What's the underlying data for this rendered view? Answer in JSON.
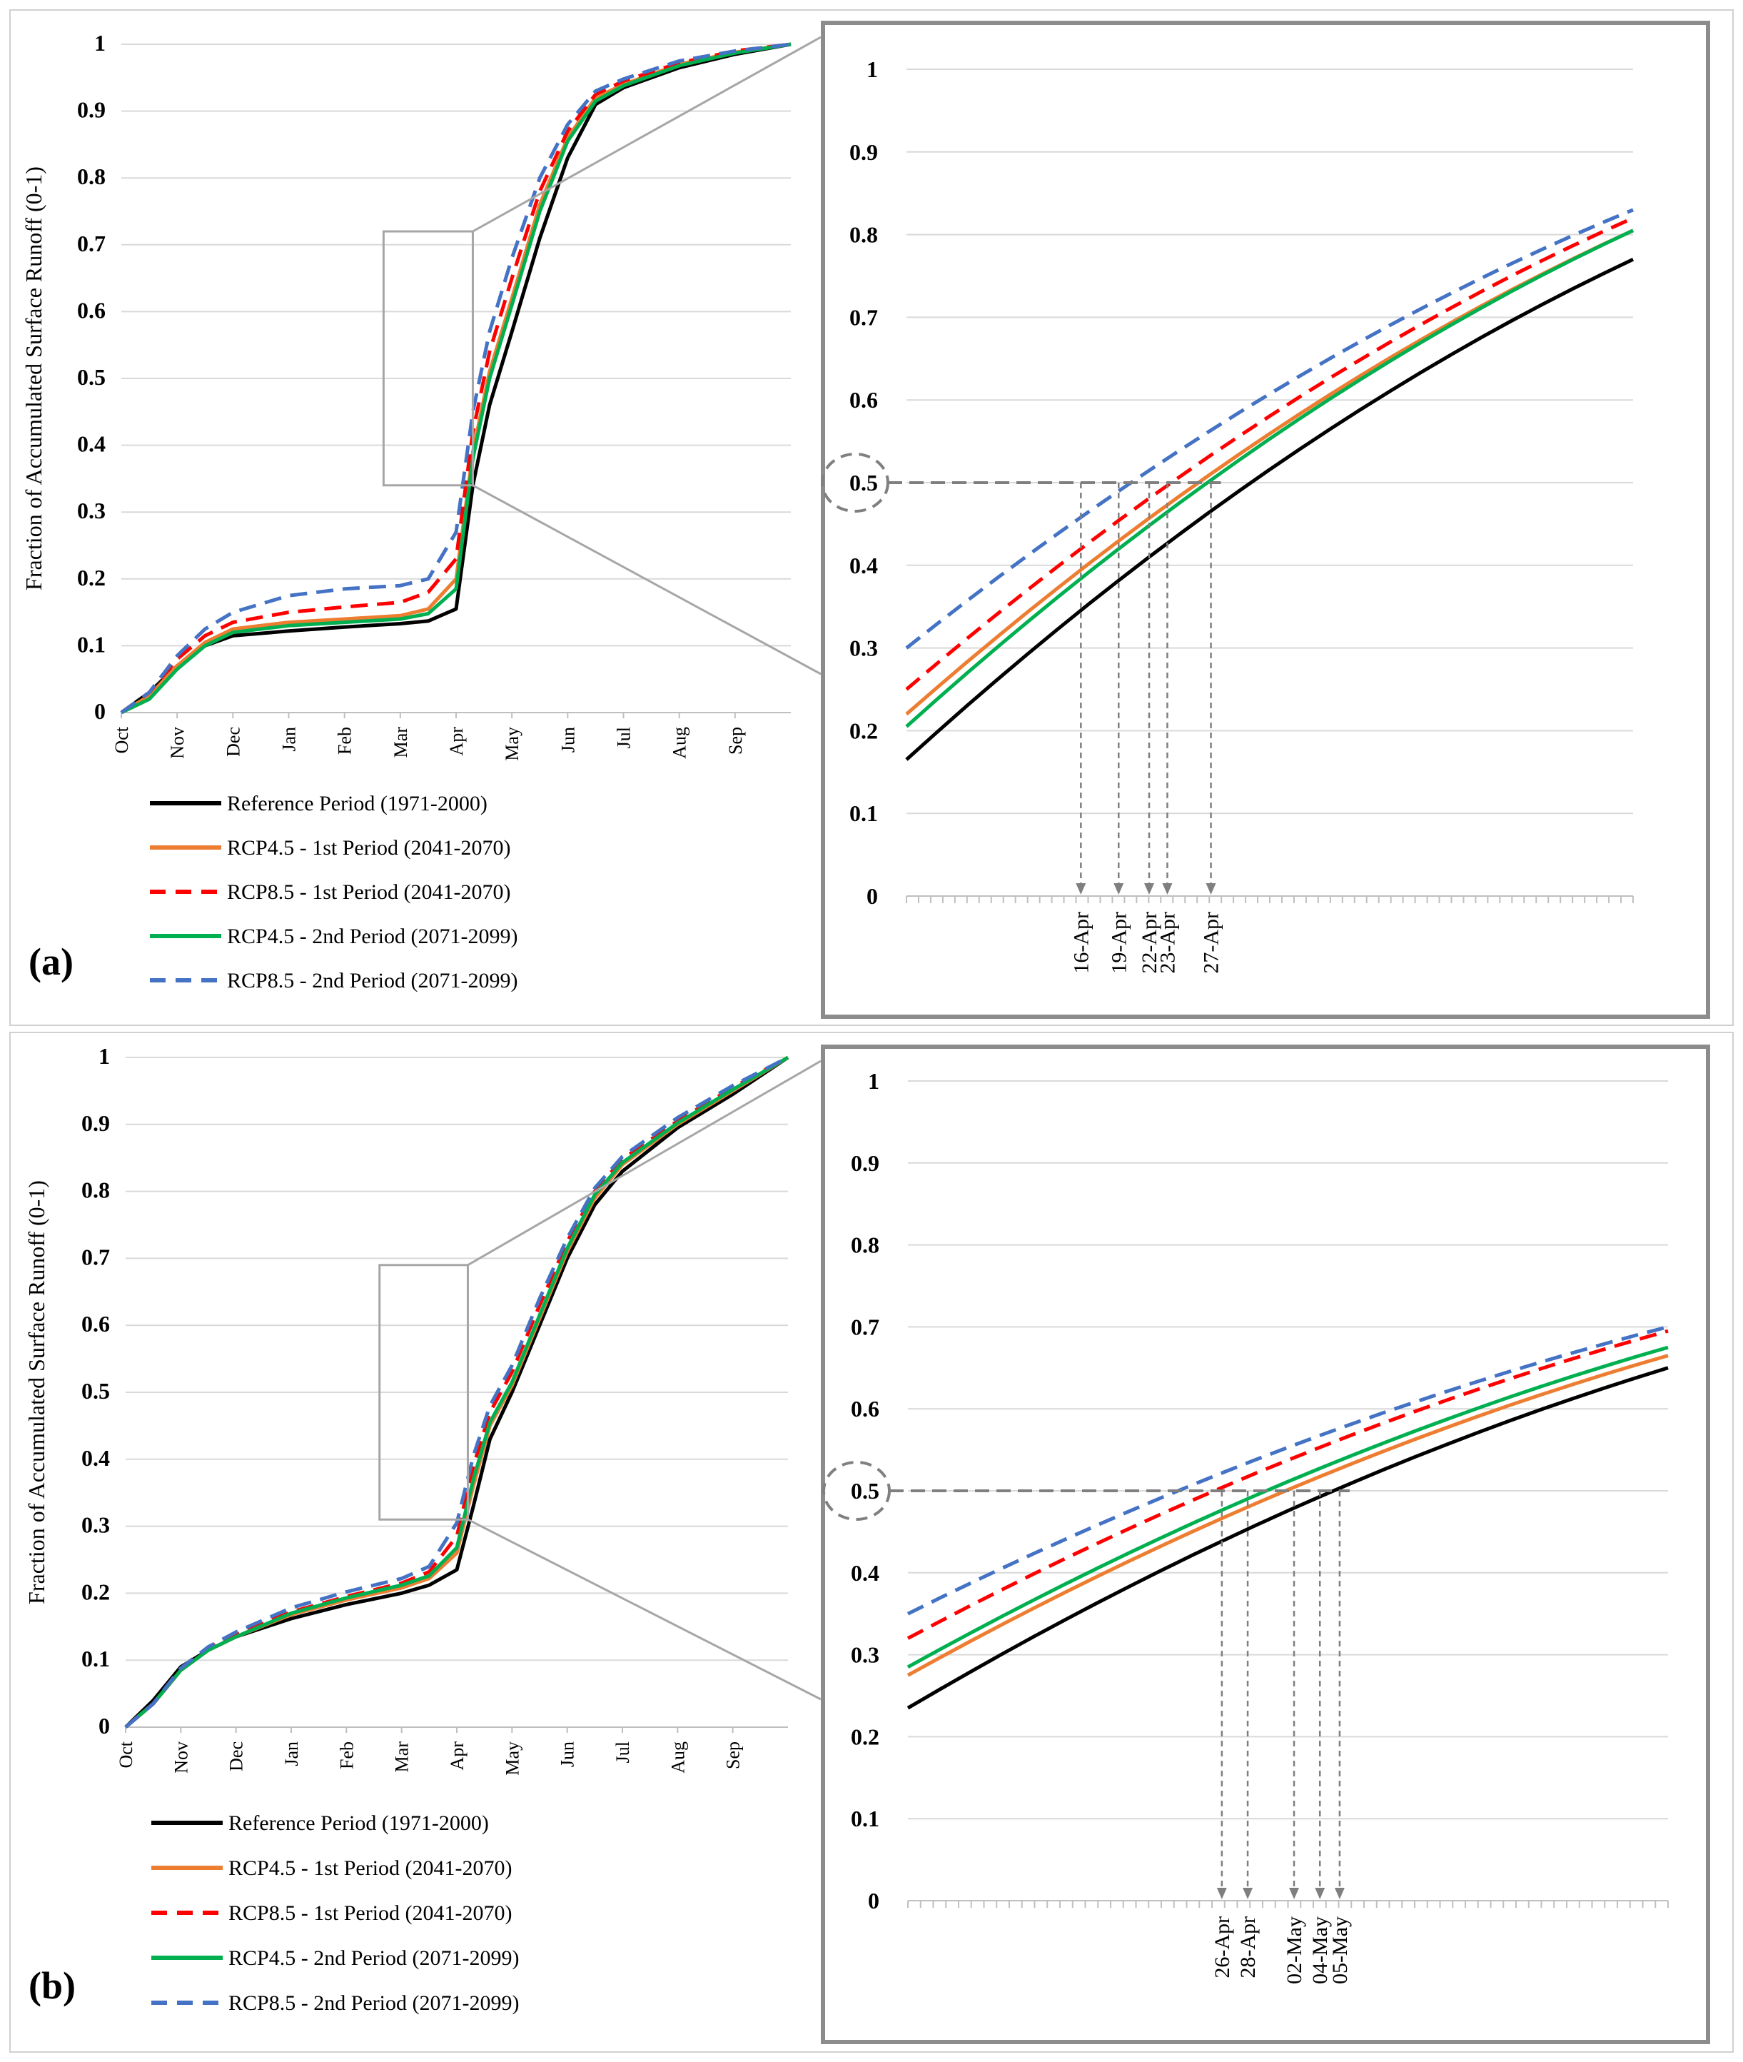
{
  "legend_styles": {
    "ref": {
      "color": "#000000",
      "dash": ""
    },
    "r45a": {
      "color": "#ED7D31",
      "dash": ""
    },
    "r85a": {
      "color": "#FF0000",
      "dash": "24,13"
    },
    "r45b": {
      "color": "#00B050",
      "dash": ""
    },
    "r85b": {
      "color": "#4472C4",
      "dash": "24,13"
    }
  },
  "chart_data": [
    {
      "panel": "(a)",
      "type": "line",
      "ylabel": "Fraction of Accumulated Surface Runoff  (0-1)",
      "x_ticks": [
        "Oct",
        "Nov",
        "Dec",
        "Jan",
        "Feb",
        "Mar",
        "Apr",
        "May",
        "Jun",
        "Jul",
        "Aug",
        "Sep"
      ],
      "xlim": [
        0,
        12
      ],
      "ylim": [
        0,
        1
      ],
      "y_ticks": [
        "0",
        "0.1",
        "0.2",
        "0.3",
        "0.4",
        "0.5",
        "0.6",
        "0.7",
        "0.8",
        "0.9",
        "1"
      ],
      "x_month": [
        0,
        0.5,
        1,
        1.5,
        2,
        3,
        4,
        5,
        5.5,
        6,
        6.3,
        6.6,
        7,
        7.5,
        8,
        8.5,
        9,
        10,
        11,
        12
      ],
      "series": [
        {
          "key": "ref",
          "name": "Reference Period (1971-2000)",
          "values": [
            0,
            0.03,
            0.07,
            0.1,
            0.115,
            0.122,
            0.128,
            0.133,
            0.137,
            0.155,
            0.34,
            0.46,
            0.57,
            0.71,
            0.83,
            0.91,
            0.935,
            0.965,
            0.985,
            1
          ]
        },
        {
          "key": "r45a",
          "name": "RCP4.5 - 1st Period (2041-2070)",
          "values": [
            0,
            0.025,
            0.07,
            0.105,
            0.125,
            0.135,
            0.14,
            0.145,
            0.155,
            0.2,
            0.39,
            0.51,
            0.62,
            0.76,
            0.86,
            0.92,
            0.94,
            0.97,
            0.988,
            1
          ]
        },
        {
          "key": "r85a",
          "name": "RCP8.5 - 1st Period (2041-2070)",
          "values": [
            0,
            0.03,
            0.08,
            0.115,
            0.135,
            0.15,
            0.158,
            0.165,
            0.18,
            0.23,
            0.42,
            0.54,
            0.65,
            0.78,
            0.87,
            0.925,
            0.945,
            0.972,
            0.99,
            1
          ]
        },
        {
          "key": "r45b",
          "name": "RCP4.5 - 2nd Period (2071-2099)",
          "values": [
            0,
            0.02,
            0.065,
            0.1,
            0.12,
            0.13,
            0.135,
            0.14,
            0.148,
            0.185,
            0.38,
            0.5,
            0.61,
            0.75,
            0.855,
            0.915,
            0.938,
            0.968,
            0.987,
            1
          ]
        },
        {
          "key": "r85b",
          "name": "RCP8.5 - 2nd Period (2071-2099)",
          "values": [
            0,
            0.03,
            0.085,
            0.125,
            0.15,
            0.175,
            0.185,
            0.19,
            0.2,
            0.27,
            0.45,
            0.57,
            0.68,
            0.8,
            0.88,
            0.93,
            0.948,
            0.975,
            0.99,
            1
          ]
        }
      ],
      "zoom": {
        "y_ticks": [
          "0",
          "0.1",
          "0.2",
          "0.3",
          "0.4",
          "0.5",
          "0.6",
          "0.7",
          "0.8",
          "0.9",
          "1"
        ],
        "ylim": [
          0,
          1
        ],
        "xlim": [
          0,
          1
        ],
        "minor_ticks": 60,
        "highlight_label": "0.5",
        "series": [
          {
            "key": "ref",
            "start": 0.165,
            "end": 0.77
          },
          {
            "key": "r45a",
            "start": 0.22,
            "end": 0.805
          },
          {
            "key": "r85a",
            "start": 0.25,
            "end": 0.82
          },
          {
            "key": "r45b",
            "start": 0.205,
            "end": 0.805
          },
          {
            "key": "r85b",
            "start": 0.3,
            "end": 0.83
          }
        ],
        "crossings": [
          {
            "label": "16-Apr",
            "x": 0.24
          },
          {
            "label": "19-Apr",
            "x": 0.292
          },
          {
            "label": "22-Apr",
            "x": 0.334
          },
          {
            "label": "23-Apr",
            "x": 0.359
          },
          {
            "label": "27-Apr",
            "x": 0.419
          }
        ]
      }
    },
    {
      "panel": "(b)",
      "type": "line",
      "ylabel": "Fraction of Accumulated Surface Runoff (0-1)",
      "x_ticks": [
        "Oct",
        "Nov",
        "Dec",
        "Jan",
        "Feb",
        "Mar",
        "Apr",
        "May",
        "Jun",
        "Jul",
        "Aug",
        "Sep"
      ],
      "xlim": [
        0,
        12
      ],
      "ylim": [
        0,
        1
      ],
      "y_ticks": [
        "0",
        "0.1",
        "0.2",
        "0.3",
        "0.4",
        "0.5",
        "0.6",
        "0.7",
        "0.8",
        "0.9",
        "1"
      ],
      "x_month": [
        0,
        0.5,
        1,
        1.5,
        2,
        3,
        4,
        5,
        5.5,
        6,
        6.3,
        6.6,
        7,
        7.5,
        8,
        8.5,
        9,
        10,
        11,
        12
      ],
      "series": [
        {
          "key": "ref",
          "name": "Reference Period (1971-2000)",
          "values": [
            0,
            0.04,
            0.09,
            0.115,
            0.135,
            0.162,
            0.183,
            0.2,
            0.212,
            0.235,
            0.33,
            0.43,
            0.5,
            0.6,
            0.7,
            0.78,
            0.83,
            0.895,
            0.945,
            1
          ]
        },
        {
          "key": "r45a",
          "name": "RCP4.5 - 1st Period (2041-2070)",
          "values": [
            0,
            0.035,
            0.085,
            0.115,
            0.135,
            0.168,
            0.19,
            0.208,
            0.222,
            0.26,
            0.36,
            0.45,
            0.51,
            0.61,
            0.71,
            0.79,
            0.84,
            0.9,
            0.95,
            1
          ]
        },
        {
          "key": "r85a",
          "name": "RCP8.5 - 1st Period (2041-2070)",
          "values": [
            0,
            0.035,
            0.085,
            0.118,
            0.138,
            0.172,
            0.195,
            0.215,
            0.232,
            0.285,
            0.39,
            0.47,
            0.53,
            0.63,
            0.725,
            0.8,
            0.848,
            0.905,
            0.955,
            1
          ]
        },
        {
          "key": "r45b",
          "name": "RCP4.5 - 2nd Period (2071-2099)",
          "values": [
            0,
            0.035,
            0.085,
            0.115,
            0.135,
            0.17,
            0.193,
            0.212,
            0.226,
            0.268,
            0.37,
            0.455,
            0.515,
            0.615,
            0.715,
            0.795,
            0.843,
            0.902,
            0.952,
            1
          ]
        },
        {
          "key": "r85b",
          "name": "RCP8.5 - 2nd Period (2071-2099)",
          "values": [
            0,
            0.035,
            0.088,
            0.12,
            0.142,
            0.178,
            0.202,
            0.222,
            0.24,
            0.305,
            0.405,
            0.48,
            0.54,
            0.64,
            0.73,
            0.805,
            0.852,
            0.91,
            0.958,
            1
          ]
        }
      ],
      "zoom": {
        "y_ticks": [
          "0",
          "0.1",
          "0.2",
          "0.3",
          "0.4",
          "0.5",
          "0.6",
          "0.7",
          "0.8",
          "0.9",
          "1"
        ],
        "ylim": [
          0,
          1
        ],
        "xlim": [
          0,
          1
        ],
        "minor_ticks": 60,
        "highlight_label": "0.5",
        "series": [
          {
            "key": "ref",
            "start": 0.235,
            "end": 0.65
          },
          {
            "key": "r45a",
            "start": 0.275,
            "end": 0.665
          },
          {
            "key": "r85a",
            "start": 0.32,
            "end": 0.695
          },
          {
            "key": "r45b",
            "start": 0.285,
            "end": 0.675
          },
          {
            "key": "r85b",
            "start": 0.35,
            "end": 0.7
          }
        ],
        "crossings": [
          {
            "label": "26-Apr",
            "x": 0.413
          },
          {
            "label": "28-Apr",
            "x": 0.447
          },
          {
            "label": "02-May",
            "x": 0.508
          },
          {
            "label": "04-May",
            "x": 0.542
          },
          {
            "label": "05-May",
            "x": 0.568
          }
        ]
      }
    }
  ]
}
